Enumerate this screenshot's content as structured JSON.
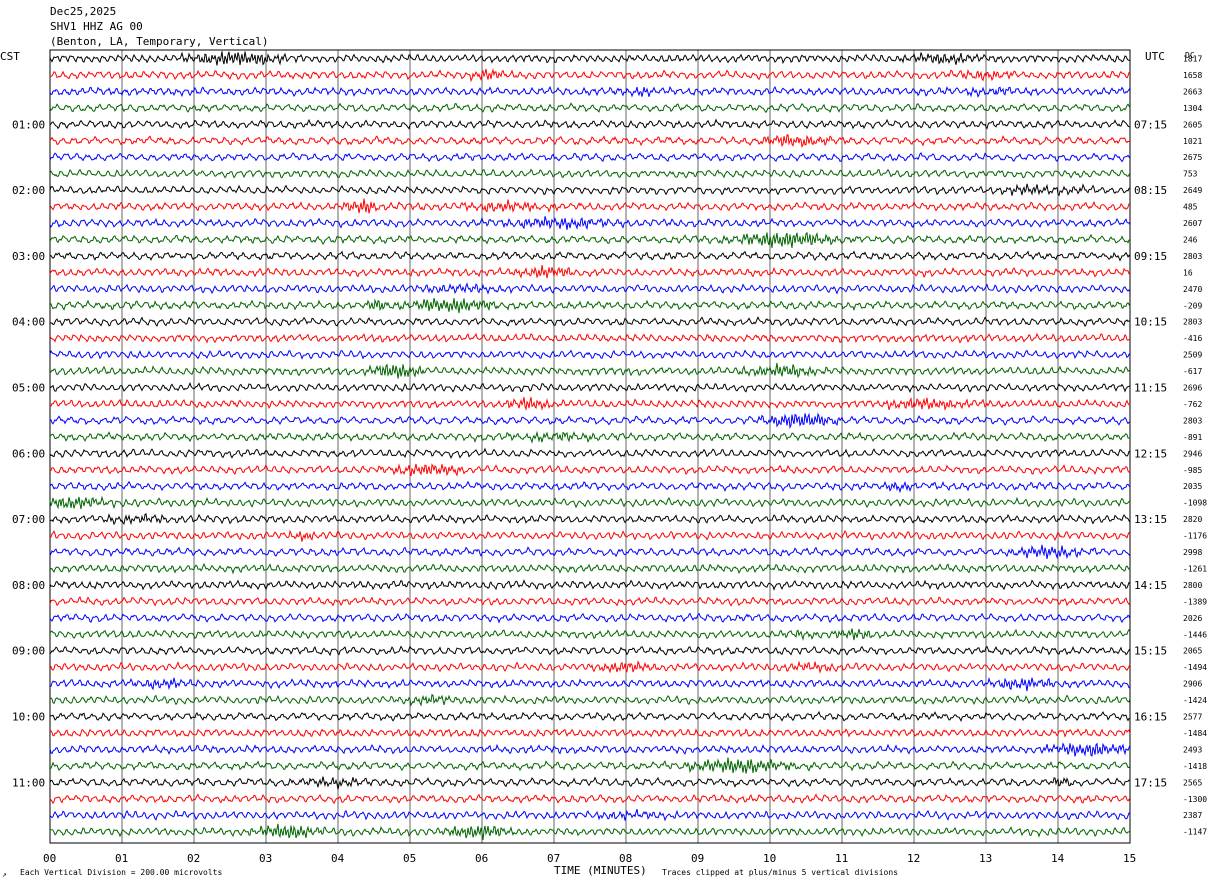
{
  "header": {
    "date": "Dec25,2025",
    "station": "SHV1 HHZ AG 00",
    "location": "(Benton, LA, Temporary, Vertical)"
  },
  "left_axis_label": "CST",
  "right_axis_label": "UTC",
  "dc_label": "DC",
  "footer": {
    "scale_note": "Each Vertical Division =  200.00 microvolts",
    "clip_note": "Traces clipped at plus/minus 5 vertical divisions",
    "corner_mark": "↗"
  },
  "colors": {
    "trace_cycle": [
      "#000000",
      "#ff0000",
      "#0000ff",
      "#006400"
    ],
    "grid": "#000000"
  },
  "chart_data": {
    "type": "line",
    "xlabel": "TIME (MINUTES)",
    "x_ticks": [
      "00",
      "01",
      "02",
      "03",
      "04",
      "05",
      "06",
      "07",
      "08",
      "09",
      "10",
      "11",
      "12",
      "13",
      "14",
      "15"
    ],
    "xlim": [
      0,
      15
    ],
    "cst_hour_labels": [
      "01:00",
      "02:00",
      "03:00",
      "04:00",
      "05:00",
      "06:00",
      "07:00",
      "08:00",
      "09:00",
      "10:00",
      "11:00"
    ],
    "utc_hour_labels": [
      "07:15",
      "08:15",
      "09:15",
      "10:15",
      "11:15",
      "12:15",
      "13:15",
      "14:15",
      "15:15",
      "16:15",
      "17:15"
    ],
    "trace_count": 48,
    "dc_offsets": [
      "1817",
      "1658",
      "2663",
      "1304",
      "2605",
      "1021",
      "2675",
      "753",
      "2649",
      "485",
      "2607",
      "246",
      "2803",
      "16",
      "2470",
      "-209",
      "2803",
      "-416",
      "2509",
      "-617",
      "2696",
      "-762",
      "2803",
      "-891",
      "2946",
      "-985",
      "2035",
      "-1098",
      "2820",
      "-1176",
      "2998",
      "-1261",
      "2800",
      "-1389",
      "2026",
      "-1446",
      "2065",
      "-1494",
      "2906",
      "-1424",
      "2577",
      "-1484",
      "2493",
      "-1418",
      "2565",
      "-1300",
      "2387",
      "-1147"
    ]
  }
}
